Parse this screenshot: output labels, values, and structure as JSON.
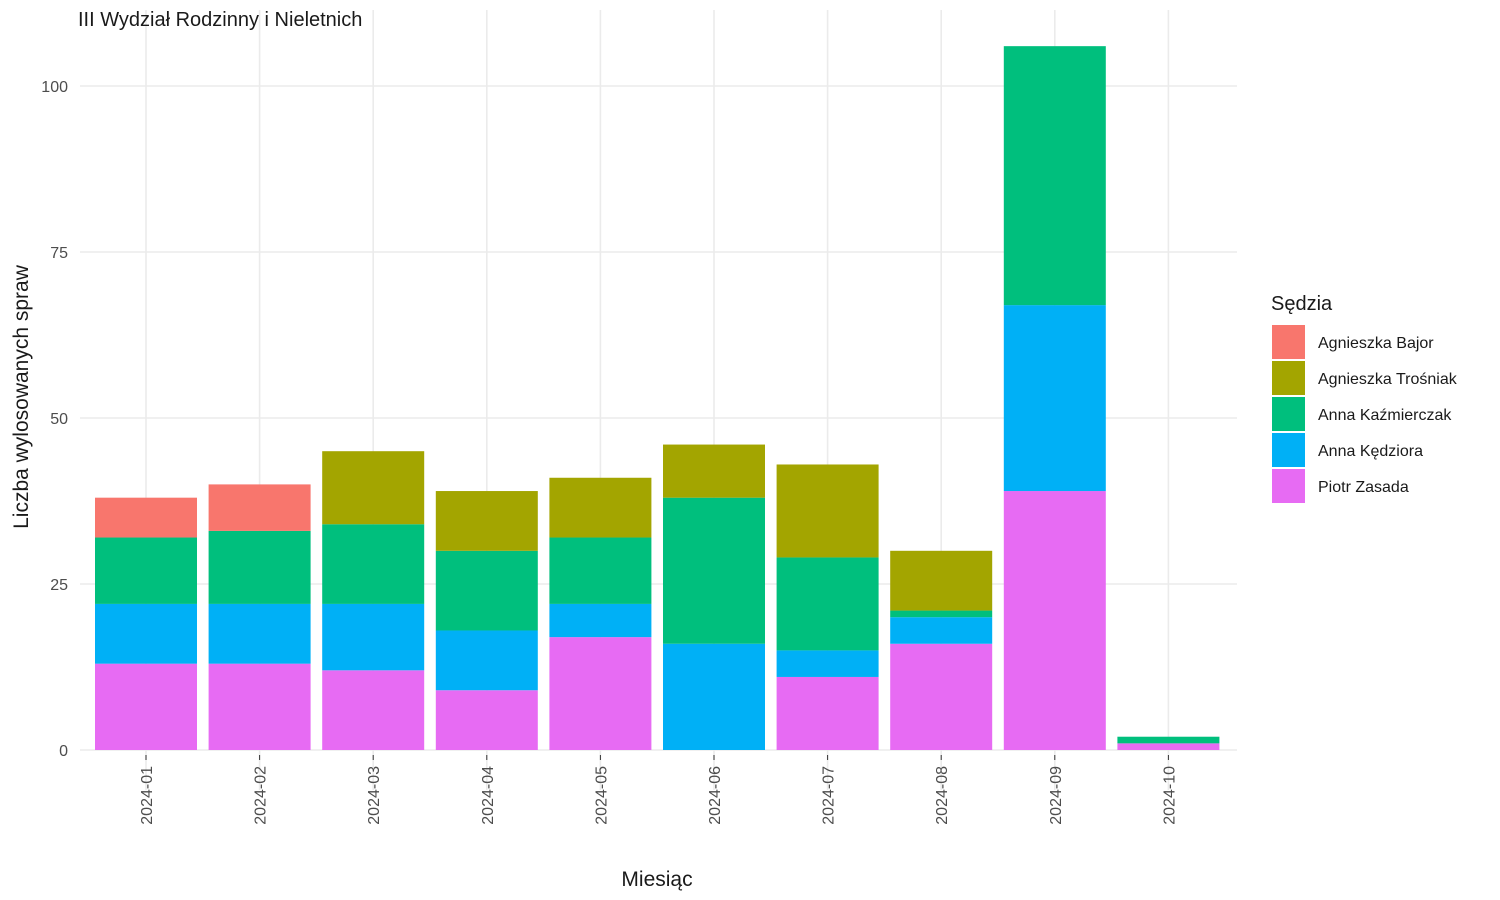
{
  "chart_data": {
    "type": "bar",
    "stacked": true,
    "title": "III Wydział Rodzinny i Nieletnich",
    "xlabel": "Miesiąc",
    "ylabel": "Liczba wylosowanych spraw",
    "ylim": [
      0,
      110
    ],
    "yticks": [
      0,
      25,
      50,
      75,
      100
    ],
    "grid": true,
    "legend": {
      "title": "Sędzia",
      "position": "right"
    },
    "categories": [
      "2024-01",
      "2024-02",
      "2024-03",
      "2024-04",
      "2024-05",
      "2024-06",
      "2024-07",
      "2024-08",
      "2024-09",
      "2024-10"
    ],
    "series": [
      {
        "name": "Piotr Zasada",
        "color": "#E76BF3",
        "values": [
          13,
          13,
          12,
          9,
          17,
          0,
          11,
          16,
          39,
          1
        ]
      },
      {
        "name": "Anna Kędziora",
        "color": "#00B0F6",
        "values": [
          9,
          9,
          10,
          9,
          5,
          16,
          4,
          4,
          28,
          0
        ]
      },
      {
        "name": "Anna Kaźmierczak",
        "color": "#00BF7D",
        "values": [
          10,
          11,
          12,
          12,
          10,
          22,
          14,
          1,
          39,
          1
        ]
      },
      {
        "name": "Agnieszka Trośniak",
        "color": "#A3A500",
        "values": [
          0,
          0,
          11,
          9,
          9,
          8,
          14,
          9,
          0,
          0
        ]
      },
      {
        "name": "Agnieszka Bajor",
        "color": "#F8766D",
        "values": [
          6,
          7,
          0,
          0,
          0,
          0,
          0,
          0,
          0,
          0
        ]
      }
    ],
    "legend_order": [
      "Agnieszka Bajor",
      "Agnieszka Trośniak",
      "Anna Kaźmierczak",
      "Anna Kędziora",
      "Piotr Zasada"
    ]
  }
}
